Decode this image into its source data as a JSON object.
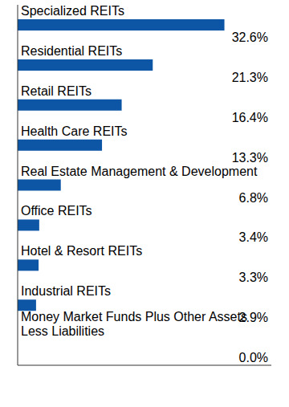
{
  "chart_data": {
    "type": "bar",
    "orientation": "horizontal",
    "categories": [
      "Specialized REITs",
      "Residential REITs",
      "Retail REITs",
      "Health Care REITs",
      "Real Estate Management & Development",
      "Office REITs",
      "Hotel & Resort REITs",
      "Industrial REITs",
      "Money Market Funds Plus Other Assets Less Liabilities"
    ],
    "values": [
      32.6,
      21.3,
      16.4,
      13.3,
      6.8,
      3.4,
      3.3,
      2.9,
      0.0
    ],
    "value_labels": [
      "32.6%",
      "21.3%",
      "16.4%",
      "13.3%",
      "6.8%",
      "3.4%",
      "3.3%",
      "2.9%",
      "0.0%"
    ],
    "data_labels": true,
    "color": "#0d56a6",
    "xlim": [
      0,
      40
    ],
    "tick_labels": false,
    "grid": false
  }
}
